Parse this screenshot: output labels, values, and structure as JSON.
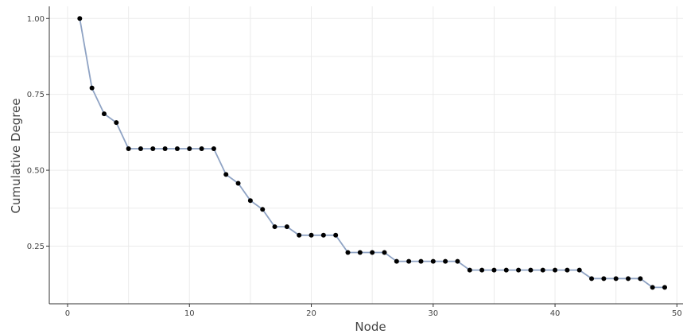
{
  "chart_data": {
    "type": "line",
    "title": "",
    "xlabel": "Node",
    "ylabel": "Cumulative Degree",
    "xlim": [
      -1.5,
      50.5
    ],
    "ylim": [
      0.06,
      1.04
    ],
    "xticks": [
      0,
      10,
      20,
      30,
      40,
      50
    ],
    "yticks": [
      0.25,
      0.5,
      0.75,
      1.0
    ],
    "xtick_labels": [
      "0",
      "10",
      "20",
      "30",
      "40",
      "50"
    ],
    "ytick_labels": [
      "0.25",
      "0.50",
      "0.75",
      "1.00"
    ],
    "grid": true,
    "line_color": "#8fa3c4",
    "marker_color": "#000000",
    "series": [
      {
        "x": [
          1,
          2,
          3,
          4,
          5,
          6,
          7,
          8,
          9,
          10,
          11,
          12,
          13,
          14,
          15,
          16,
          17,
          18,
          19,
          20,
          21,
          22,
          23,
          24,
          25,
          26,
          27,
          28,
          29,
          30,
          31,
          32,
          33,
          34,
          35,
          36,
          37,
          38,
          39,
          40,
          41,
          42,
          43,
          44,
          45,
          46,
          47,
          48,
          49
        ],
        "values": [
          1.0,
          0.771,
          0.686,
          0.657,
          0.571,
          0.571,
          0.571,
          0.571,
          0.571,
          0.571,
          0.571,
          0.571,
          0.486,
          0.457,
          0.4,
          0.371,
          0.314,
          0.314,
          0.286,
          0.286,
          0.286,
          0.286,
          0.229,
          0.229,
          0.229,
          0.229,
          0.2,
          0.2,
          0.2,
          0.2,
          0.2,
          0.2,
          0.171,
          0.171,
          0.171,
          0.171,
          0.171,
          0.171,
          0.171,
          0.171,
          0.171,
          0.171,
          0.143,
          0.143,
          0.143,
          0.143,
          0.143,
          0.114,
          0.114
        ]
      }
    ]
  }
}
